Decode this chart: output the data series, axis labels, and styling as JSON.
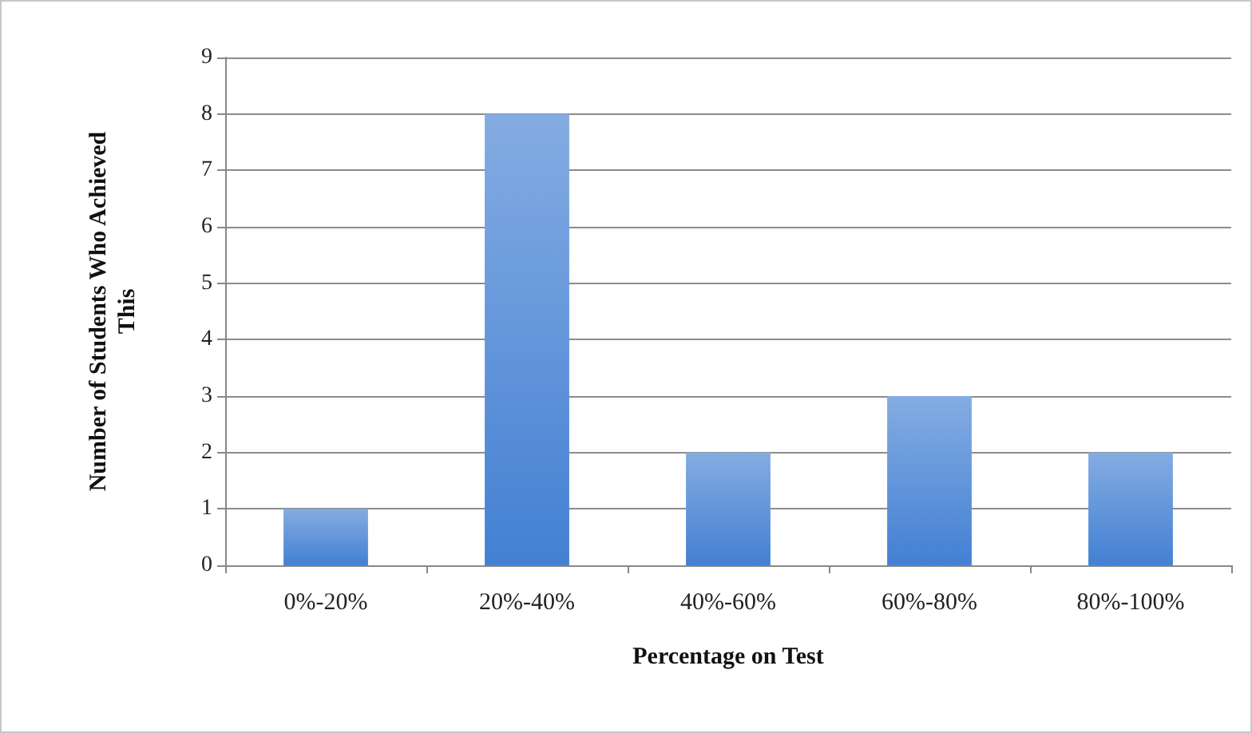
{
  "chart_data": {
    "type": "bar",
    "xlabel": "Percentage on Test",
    "ylabel": "Number of Students Who Achieved This",
    "categories": [
      "0%-20%",
      "20%-40%",
      "40%-60%",
      "60%-80%",
      "80%-100%"
    ],
    "values": [
      1,
      8,
      2,
      3,
      2
    ],
    "color": "#4380d3",
    "ylim": [
      0,
      9
    ],
    "yticks": [
      0,
      1,
      2,
      3,
      4,
      5,
      6,
      7,
      8,
      9
    ],
    "grid": "y"
  }
}
